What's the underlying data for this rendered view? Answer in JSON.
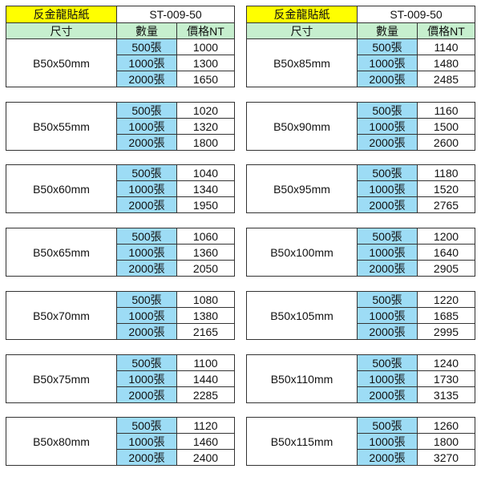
{
  "colors": {
    "title_bg": "#ffff00",
    "header_bg": "#c6efce",
    "quantity_bg": "#9ddcf5"
  },
  "tables": [
    {
      "title": "反金龍貼紙",
      "code": "ST-009-50",
      "headers": {
        "size": "尺寸",
        "quantity": "數量",
        "price": "價格NT"
      },
      "groups": [
        {
          "size": "B50x50mm",
          "rows": [
            {
              "qty": "500張",
              "price": "1000"
            },
            {
              "qty": "1000張",
              "price": "1300"
            },
            {
              "qty": "2000張",
              "price": "1650"
            }
          ]
        },
        {
          "size": "B50x55mm",
          "rows": [
            {
              "qty": "500張",
              "price": "1020"
            },
            {
              "qty": "1000張",
              "price": "1320"
            },
            {
              "qty": "2000張",
              "price": "1800"
            }
          ]
        },
        {
          "size": "B50x60mm",
          "rows": [
            {
              "qty": "500張",
              "price": "1040"
            },
            {
              "qty": "1000張",
              "price": "1340"
            },
            {
              "qty": "2000張",
              "price": "1950"
            }
          ]
        },
        {
          "size": "B50x65mm",
          "rows": [
            {
              "qty": "500張",
              "price": "1060"
            },
            {
              "qty": "1000張",
              "price": "1360"
            },
            {
              "qty": "2000張",
              "price": "2050"
            }
          ]
        },
        {
          "size": "B50x70mm",
          "rows": [
            {
              "qty": "500張",
              "price": "1080"
            },
            {
              "qty": "1000張",
              "price": "1380"
            },
            {
              "qty": "2000張",
              "price": "2165"
            }
          ]
        },
        {
          "size": "B50x75mm",
          "rows": [
            {
              "qty": "500張",
              "price": "1100"
            },
            {
              "qty": "1000張",
              "price": "1440"
            },
            {
              "qty": "2000張",
              "price": "2285"
            }
          ]
        },
        {
          "size": "B50x80mm",
          "rows": [
            {
              "qty": "500張",
              "price": "1120"
            },
            {
              "qty": "1000張",
              "price": "1460"
            },
            {
              "qty": "2000張",
              "price": "2400"
            }
          ]
        }
      ]
    },
    {
      "title": "反金龍貼紙",
      "code": "ST-009-50",
      "headers": {
        "size": "尺寸",
        "quantity": "數量",
        "price": "價格NT"
      },
      "groups": [
        {
          "size": "B50x85mm",
          "rows": [
            {
              "qty": "500張",
              "price": "1140"
            },
            {
              "qty": "1000張",
              "price": "1480"
            },
            {
              "qty": "2000張",
              "price": "2485"
            }
          ]
        },
        {
          "size": "B50x90mm",
          "rows": [
            {
              "qty": "500張",
              "price": "1160"
            },
            {
              "qty": "1000張",
              "price": "1500"
            },
            {
              "qty": "2000張",
              "price": "2600"
            }
          ]
        },
        {
          "size": "B50x95mm",
          "rows": [
            {
              "qty": "500張",
              "price": "1180"
            },
            {
              "qty": "1000張",
              "price": "1520"
            },
            {
              "qty": "2000張",
              "price": "2765"
            }
          ]
        },
        {
          "size": "B50x100mm",
          "rows": [
            {
              "qty": "500張",
              "price": "1200"
            },
            {
              "qty": "1000張",
              "price": "1640"
            },
            {
              "qty": "2000張",
              "price": "2905"
            }
          ]
        },
        {
          "size": "B50x105mm",
          "rows": [
            {
              "qty": "500張",
              "price": "1220"
            },
            {
              "qty": "1000張",
              "price": "1685"
            },
            {
              "qty": "2000張",
              "price": "2995"
            }
          ]
        },
        {
          "size": "B50x110mm",
          "rows": [
            {
              "qty": "500張",
              "price": "1240"
            },
            {
              "qty": "1000張",
              "price": "1730"
            },
            {
              "qty": "2000張",
              "price": "3135"
            }
          ]
        },
        {
          "size": "B50x115mm",
          "rows": [
            {
              "qty": "500張",
              "price": "1260"
            },
            {
              "qty": "1000張",
              "price": "1800"
            },
            {
              "qty": "2000張",
              "price": "3270"
            }
          ]
        }
      ]
    }
  ]
}
